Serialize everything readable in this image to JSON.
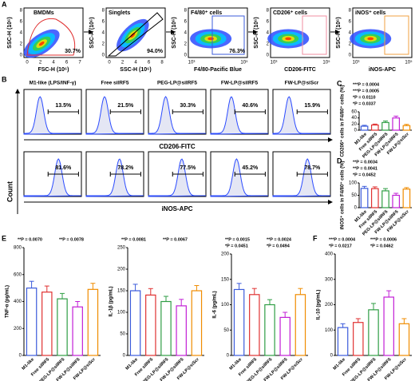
{
  "panel_a": {
    "label": "A",
    "plots": [
      {
        "title": "BMDMs",
        "xlabel": "FSC-H (10⁶)",
        "ylabel": "SSC-H (10⁶)",
        "gate": "30.7%",
        "xticks": [
          "0",
          "2",
          "4",
          "6",
          "7"
        ],
        "yticks": [
          "0",
          "2",
          "4",
          "6",
          "8"
        ]
      },
      {
        "title": "Singlets",
        "xlabel": "SSC-H (10⁶)",
        "ylabel": "SSC-A (10⁶)",
        "gate": "94.0%",
        "xticks": [
          "0",
          "2",
          "4",
          "6",
          "8"
        ],
        "yticks": [
          "0",
          "2",
          "4",
          "6",
          "8"
        ]
      },
      {
        "title": "F4/80⁺ cells",
        "xlabel": "F4/80-Pacific Blue",
        "ylabel": "SSC-H (10⁶)",
        "gate": "76.3%",
        "xticks": [
          "10³",
          "10⁵"
        ],
        "yticks": [
          "0",
          "2",
          "4",
          "6",
          "8"
        ]
      },
      {
        "title": "CD206⁺ cells",
        "xlabel": "CD206-FITC",
        "ylabel": "SSC-H (10⁶)",
        "xticks": [
          "10³",
          "10⁵"
        ],
        "yticks": [
          "0",
          "2",
          "4",
          "6",
          "8"
        ]
      },
      {
        "title": "iNOS⁺ cells",
        "xlabel": "iNOS-APC",
        "ylabel": "SSC-H (10⁶)",
        "xticks": [
          "10³",
          "10⁵"
        ],
        "yticks": [
          "0",
          "2",
          "4",
          "6",
          "8"
        ]
      }
    ]
  },
  "panel_b": {
    "label": "B",
    "ylabel": "Count",
    "groups": [
      "M1-like (LPS/INF-γ)",
      "Free silRF5",
      "PEG-LP@silRF5",
      "FW-LP@silRF5",
      "FW-LP@siScr"
    ],
    "rows": [
      {
        "axis": "CD206-FITC",
        "values": [
          "13.5%",
          "21.5%",
          "30.3%",
          "40.6%",
          "15.9%"
        ]
      },
      {
        "axis": "iNOS-APC",
        "values": [
          "81.6%",
          "78.2%",
          "77.5%",
          "45.2%",
          "78.7%"
        ]
      }
    ]
  },
  "chart_data": [
    {
      "type": "bar",
      "label": "C",
      "ylabel": "CD206⁺ cells in F4/80⁺ cells (%)",
      "categories": [
        "M1-like",
        "Free silRF5",
        "PEG-LP@silRF5",
        "FW-LP@silRF5",
        "FW-LP@siScr"
      ],
      "values": [
        13,
        17,
        25,
        40,
        15
      ],
      "errors": [
        3,
        3,
        5,
        6,
        4
      ],
      "colors": [
        "#3b5bdb",
        "#e03131",
        "#2f9e44",
        "#c21fd6",
        "#f08c00"
      ],
      "ylim": [
        0,
        60
      ],
      "yticks": [
        0,
        20,
        40,
        60
      ],
      "annotations": [
        "***P = 0.0004",
        "***P = 0.0005",
        "*P = 0.0110",
        "*P = 0.0337"
      ]
    },
    {
      "type": "bar",
      "label": "D",
      "ylabel": "iNOS⁺ cells in F4/80⁺ cells (%)",
      "categories": [
        "M1-like",
        "Free silRF5",
        "PEG-LP@silRF5",
        "FW-LP@silRF5",
        "FW-LP@siScr"
      ],
      "values": [
        78,
        77,
        68,
        50,
        75
      ],
      "errors": [
        8,
        7,
        9,
        8,
        6
      ],
      "colors": [
        "#3b5bdb",
        "#e03131",
        "#2f9e44",
        "#c21fd6",
        "#f08c00"
      ],
      "ylim": [
        0,
        100
      ],
      "yticks": [
        0,
        50,
        100
      ],
      "annotations": [
        "**P = 0.0034",
        "**P = 0.0041",
        "*P = 0.0452"
      ]
    },
    {
      "type": "bar",
      "label": "E",
      "ylabel": "TNF-α (pg/mL)",
      "categories": [
        "M1-like",
        "Free silRF5",
        "PEG-LP@silRF5",
        "FW-LP@silRF5",
        "FW-LP@siScr"
      ],
      "values": [
        500,
        470,
        420,
        360,
        490
      ],
      "errors": [
        50,
        45,
        40,
        40,
        45
      ],
      "colors": [
        "#3b5bdb",
        "#e03131",
        "#2f9e44",
        "#c21fd6",
        "#f08c00"
      ],
      "ylim": [
        0,
        800
      ],
      "yticks": [
        0,
        200,
        400,
        600,
        800
      ],
      "annotations": [
        "**P = 0.0070",
        "**P = 0.0078"
      ]
    },
    {
      "type": "bar",
      "ylabel": "IL-1β (pg/mL)",
      "categories": [
        "M1-like",
        "Free silRF5",
        "PEG-LP@silRF5",
        "FW-LP@silRF5",
        "FW-LP@siScr"
      ],
      "values": [
        150,
        140,
        125,
        115,
        150
      ],
      "errors": [
        15,
        15,
        12,
        15,
        12
      ],
      "colors": [
        "#3b5bdb",
        "#e03131",
        "#2f9e44",
        "#c21fd6",
        "#f08c00"
      ],
      "ylim": [
        0,
        250
      ],
      "yticks": [
        0,
        50,
        100,
        150,
        200,
        250
      ],
      "annotations": [
        "**P = 0.0081",
        "**P = 0.0067"
      ]
    },
    {
      "type": "bar",
      "ylabel": "IL-6 (pg/mL)",
      "categories": [
        "M1-like",
        "Free silRF5",
        "PEG-LP@silRF5",
        "FW-LP@silRF5",
        "FW-LP@siScr"
      ],
      "values": [
        130,
        120,
        100,
        75,
        120
      ],
      "errors": [
        12,
        12,
        10,
        10,
        12
      ],
      "colors": [
        "#3b5bdb",
        "#e03131",
        "#2f9e44",
        "#c21fd6",
        "#f08c00"
      ],
      "ylim": [
        0,
        200
      ],
      "yticks": [
        0,
        50,
        100,
        150,
        200
      ],
      "annotations": [
        "**P = 0.0015",
        "**P = 0.0024",
        "*P = 0.0451",
        "*P = 0.0494"
      ]
    },
    {
      "type": "bar",
      "label": "F",
      "ylabel": "IL-10 (pg/mL)",
      "categories": [
        "M1-like",
        "Free silRF5",
        "PEG-LP@silRF5",
        "FW-LP@silRF5",
        "FW-LP@siScr"
      ],
      "values": [
        110,
        130,
        180,
        230,
        125
      ],
      "errors": [
        15,
        15,
        25,
        25,
        20
      ],
      "colors": [
        "#3b5bdb",
        "#e03131",
        "#2f9e44",
        "#c21fd6",
        "#f08c00"
      ],
      "ylim": [
        0,
        400
      ],
      "yticks": [
        0,
        100,
        200,
        300,
        400
      ],
      "annotations": [
        "***P = 0.0004",
        "***P = 0.0006",
        "*P = 0.0217",
        "*P = 0.0462"
      ]
    }
  ]
}
